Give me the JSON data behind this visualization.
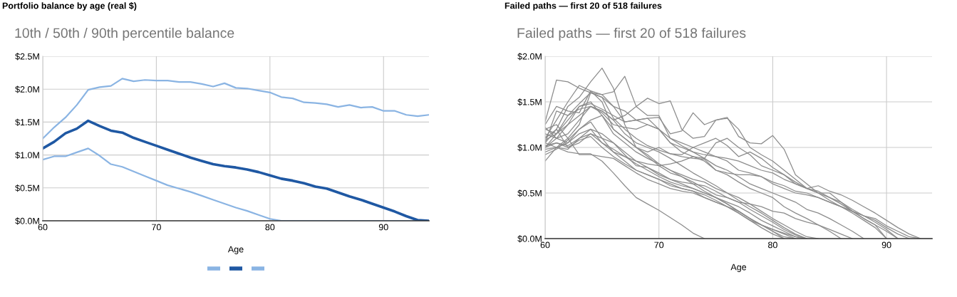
{
  "chart_data": [
    {
      "type": "line",
      "title": "10th / 50th / 90th percentile balance",
      "xlabel": "Age",
      "annotations": [
        "Portfolio balance by age (real $)"
      ],
      "x": [
        60,
        61,
        62,
        63,
        64,
        65,
        66,
        67,
        68,
        69,
        70,
        71,
        72,
        73,
        74,
        75,
        76,
        77,
        78,
        79,
        80,
        81,
        82,
        83,
        84,
        85,
        86,
        87,
        88,
        89,
        90,
        91,
        92,
        93,
        94
      ],
      "xlim": [
        60,
        94
      ],
      "xticks": [
        60,
        70,
        80,
        90
      ],
      "ylim": [
        0,
        2.5
      ],
      "yticks": [
        {
          "value": 0,
          "label": "$0.0M"
        },
        {
          "value": 0.5,
          "label": "$0.5M"
        },
        {
          "value": 1.0,
          "label": "$1.0M"
        },
        {
          "value": 1.5,
          "label": "$1.5M"
        },
        {
          "value": 2.0,
          "label": "$2.0M"
        },
        {
          "value": 2.5,
          "label": "$2.5M"
        }
      ],
      "grid": true,
      "marker": "none",
      "line_style": "solid",
      "series": [
        {
          "color": "#8ab4e3",
          "values": [
            0.93,
            0.98,
            0.98,
            1.04,
            1.1,
            0.99,
            0.86,
            0.82,
            0.75,
            0.68,
            0.61,
            0.54,
            0.49,
            0.44,
            0.38,
            0.32,
            0.26,
            0.2,
            0.15,
            0.09,
            0.03,
            0,
            0,
            0,
            0,
            0,
            0,
            0,
            0,
            0,
            0,
            0,
            0,
            0,
            0
          ]
        },
        {
          "color": "#1f58a3",
          "values": [
            1.1,
            1.2,
            1.33,
            1.4,
            1.52,
            1.44,
            1.37,
            1.34,
            1.26,
            1.2,
            1.14,
            1.08,
            1.02,
            0.96,
            0.91,
            0.86,
            0.83,
            0.81,
            0.78,
            0.74,
            0.69,
            0.64,
            0.61,
            0.57,
            0.52,
            0.49,
            0.43,
            0.37,
            0.32,
            0.26,
            0.2,
            0.14,
            0.07,
            0.01,
            0
          ]
        },
        {
          "color": "#8ab4e3",
          "values": [
            1.25,
            1.42,
            1.57,
            1.76,
            1.99,
            2.03,
            2.05,
            2.16,
            2.12,
            2.14,
            2.13,
            2.13,
            2.11,
            2.11,
            2.08,
            2.04,
            2.09,
            2.02,
            2.01,
            1.98,
            1.95,
            1.88,
            1.86,
            1.8,
            1.79,
            1.77,
            1.73,
            1.76,
            1.72,
            1.73,
            1.67,
            1.67,
            1.61,
            1.59,
            1.61
          ]
        }
      ]
    },
    {
      "type": "line",
      "title": "Failed paths — first 20 of 518 failures",
      "xlabel": "Age",
      "annotations": [
        "Failed paths — first 20 of 518 failures"
      ],
      "x": [
        60,
        61,
        62,
        63,
        64,
        65,
        66,
        67,
        68,
        69,
        70,
        71,
        72,
        73,
        74,
        75,
        76,
        77,
        78,
        79,
        80,
        81,
        82,
        83,
        84,
        85,
        86,
        87,
        88,
        89,
        90,
        91,
        92,
        93,
        94
      ],
      "xlim": [
        60,
        94
      ],
      "xticks": [
        60,
        70,
        80,
        90
      ],
      "ylim": [
        0,
        2.0
      ],
      "yticks": [
        {
          "value": 0,
          "label": "$0.0M"
        },
        {
          "value": 0.5,
          "label": "$0.5M"
        },
        {
          "value": 1.0,
          "label": "$1.0M"
        },
        {
          "value": 1.5,
          "label": "$1.5M"
        },
        {
          "value": 2.0,
          "label": "$2.0M"
        }
      ],
      "grid": true,
      "marker": "none",
      "line_style": "solid",
      "series": [
        {
          "color": "#8c8c8c",
          "values": [
            1.05,
            1.0,
            0.95,
            0.93,
            0.93,
            0.85,
            0.72,
            0.58,
            0.45,
            0.38,
            0.31,
            0.23,
            0.15,
            0.06,
            0.0,
            null,
            null,
            null,
            null,
            null,
            null,
            null,
            null,
            null,
            null,
            null,
            null,
            null,
            null,
            null,
            null,
            null,
            null,
            null,
            null
          ]
        },
        {
          "color": "#8c8c8c",
          "values": [
            1.05,
            1.2,
            1.45,
            1.55,
            1.72,
            1.87,
            1.65,
            1.25,
            1.0,
            0.92,
            0.82,
            0.75,
            0.68,
            0.6,
            0.52,
            0.45,
            0.38,
            0.3,
            0.22,
            0.15,
            0.1,
            0.06,
            0.02,
            0.0,
            null,
            null,
            null,
            null,
            null,
            null,
            null,
            null,
            null,
            null,
            null
          ]
        },
        {
          "color": "#8c8c8c",
          "values": [
            1.28,
            1.74,
            1.72,
            1.65,
            1.6,
            1.55,
            1.32,
            1.2,
            1.1,
            1.02,
            0.97,
            0.93,
            0.9,
            0.88,
            0.87,
            0.75,
            0.7,
            0.62,
            0.55,
            0.5,
            0.45,
            0.35,
            0.28,
            0.22,
            0.15,
            0.08,
            0.0,
            null,
            null,
            null,
            null,
            null,
            null,
            null,
            null
          ]
        },
        {
          "color": "#8c8c8c",
          "values": [
            1.1,
            1.3,
            1.5,
            1.68,
            1.62,
            1.58,
            1.61,
            1.78,
            1.45,
            1.35,
            1.35,
            1.1,
            1.05,
            1.0,
            0.95,
            0.9,
            0.85,
            0.75,
            0.72,
            0.68,
            0.62,
            0.58,
            0.52,
            0.5,
            0.45,
            0.4,
            0.35,
            0.3,
            0.25,
            0.2,
            0.12,
            0.05,
            0.0,
            null,
            null
          ]
        },
        {
          "color": "#8c8c8c",
          "values": [
            1.0,
            1.15,
            1.25,
            1.35,
            1.45,
            1.4,
            1.3,
            1.35,
            1.45,
            1.54,
            1.48,
            1.51,
            1.2,
            1.1,
            1.12,
            1.3,
            1.33,
            1.12,
            1.05,
            1.04,
            1.13,
            0.98,
            0.7,
            0.6,
            0.5,
            0.5,
            0.4,
            0.3,
            0.25,
            0.22,
            0.14,
            0.08,
            0.02,
            0.0,
            0.0
          ]
        },
        {
          "color": "#8c8c8c",
          "values": [
            1.2,
            1.15,
            1.3,
            1.45,
            1.48,
            1.42,
            1.35,
            1.28,
            1.3,
            1.32,
            1.33,
            1.15,
            1.18,
            1.38,
            1.25,
            1.3,
            1.32,
            1.2,
            1.0,
            0.92,
            0.85,
            0.75,
            0.65,
            0.55,
            0.58,
            0.52,
            0.48,
            0.42,
            0.35,
            0.28,
            0.2,
            0.12,
            0.05,
            0.0,
            null
          ]
        },
        {
          "color": "#8c8c8c",
          "values": [
            0.95,
            1.0,
            1.1,
            1.25,
            1.6,
            1.55,
            1.45,
            1.4,
            1.3,
            1.25,
            1.2,
            1.1,
            1.02,
            0.95,
            0.88,
            0.8,
            0.75,
            0.68,
            0.6,
            0.55,
            0.5,
            0.45,
            0.4,
            0.32,
            0.28,
            0.22,
            0.15,
            0.08,
            0.0,
            null,
            null,
            null,
            null,
            null,
            null
          ]
        },
        {
          "color": "#8c8c8c",
          "values": [
            1.25,
            1.45,
            1.4,
            1.38,
            1.62,
            1.5,
            1.2,
            1.1,
            1.0,
            0.95,
            1.0,
            0.93,
            0.92,
            1.0,
            1.05,
            1.1,
            1.02,
            0.9,
            0.95,
            0.88,
            0.78,
            0.7,
            0.62,
            0.55,
            0.5,
            0.45,
            0.4,
            0.32,
            0.25,
            0.18,
            0.1,
            0.0,
            null,
            null,
            null
          ]
        },
        {
          "color": "#8c8c8c",
          "values": [
            1.0,
            1.05,
            1.02,
            1.1,
            1.15,
            1.05,
            0.95,
            0.9,
            0.85,
            0.82,
            0.8,
            0.82,
            0.85,
            0.9,
            0.88,
            1.05,
            1.1,
            1.0,
            0.92,
            0.8,
            0.75,
            0.7,
            0.6,
            0.55,
            0.5,
            0.42,
            0.35,
            0.28,
            0.2,
            0.12,
            0.0,
            null,
            null,
            null,
            null
          ]
        },
        {
          "color": "#8c8c8c",
          "values": [
            1.1,
            1.2,
            1.0,
            1.05,
            1.15,
            1.1,
            0.95,
            0.85,
            0.75,
            0.7,
            0.65,
            0.6,
            0.55,
            0.52,
            0.48,
            0.42,
            0.35,
            0.28,
            0.2,
            0.12,
            0.05,
            0.0,
            null,
            null,
            null,
            null,
            null,
            null,
            null,
            null,
            null,
            null,
            null,
            null,
            null
          ]
        },
        {
          "color": "#8c8c8c",
          "values": [
            0.85,
            1.0,
            1.05,
            1.2,
            1.28,
            1.1,
            1.05,
            0.95,
            0.85,
            0.78,
            0.72,
            0.65,
            0.6,
            0.55,
            0.5,
            0.45,
            0.38,
            0.3,
            0.22,
            0.15,
            0.08,
            0.02,
            0.0,
            null,
            null,
            null,
            null,
            null,
            null,
            null,
            null,
            null,
            null,
            null,
            null
          ]
        },
        {
          "color": "#8c8c8c",
          "values": [
            1.2,
            1.25,
            1.1,
            0.92,
            0.92,
            0.9,
            0.88,
            0.8,
            0.72,
            0.65,
            0.6,
            0.55,
            0.52,
            0.5,
            0.45,
            0.4,
            0.35,
            0.3,
            0.22,
            0.15,
            0.1,
            0.05,
            0.0,
            null,
            null,
            null,
            null,
            null,
            null,
            null,
            null,
            null,
            null,
            null,
            null
          ]
        },
        {
          "color": "#8c8c8c",
          "values": [
            1.0,
            1.1,
            1.15,
            1.3,
            1.45,
            1.4,
            1.3,
            1.15,
            1.05,
            1.0,
            0.95,
            0.88,
            0.8,
            0.72,
            0.65,
            0.58,
            0.5,
            0.45,
            0.38,
            0.3,
            0.22,
            0.15,
            0.08,
            0.02,
            0.0,
            null,
            null,
            null,
            null,
            null,
            null,
            null,
            null,
            null,
            null
          ]
        },
        {
          "color": "#8c8c8c",
          "values": [
            1.05,
            1.4,
            1.35,
            1.42,
            1.45,
            1.38,
            1.25,
            1.22,
            1.2,
            1.25,
            1.2,
            1.05,
            0.95,
            0.9,
            0.85,
            0.75,
            0.72,
            0.7,
            0.7,
            0.68,
            0.6,
            0.55,
            0.5,
            0.48,
            0.45,
            0.4,
            0.35,
            0.3,
            0.22,
            0.15,
            0.08,
            0.0,
            null,
            null,
            null
          ]
        },
        {
          "color": "#8c8c8c",
          "values": [
            0.98,
            1.0,
            0.98,
            1.1,
            1.2,
            1.15,
            1.05,
            0.92,
            0.8,
            0.78,
            0.7,
            0.65,
            0.62,
            0.6,
            0.58,
            0.52,
            0.45,
            0.4,
            0.32,
            0.25,
            0.18,
            0.1,
            0.04,
            0.0,
            null,
            null,
            null,
            null,
            null,
            null,
            null,
            null,
            null,
            null,
            null
          ]
        },
        {
          "color": "#8c8c8c",
          "values": [
            1.02,
            1.05,
            1.0,
            1.08,
            1.12,
            1.0,
            0.9,
            0.82,
            0.75,
            0.7,
            0.65,
            0.58,
            0.55,
            0.52,
            0.45,
            0.4,
            0.35,
            0.28,
            0.2,
            0.15,
            0.08,
            0.0,
            null,
            null,
            null,
            null,
            null,
            null,
            null,
            null,
            null,
            null,
            null,
            null,
            null
          ]
        },
        {
          "color": "#8c8c8c",
          "values": [
            1.15,
            1.1,
            1.25,
            1.45,
            1.5,
            1.35,
            1.15,
            1.05,
            0.95,
            0.88,
            0.82,
            0.75,
            0.7,
            0.65,
            0.62,
            0.55,
            0.5,
            0.42,
            0.35,
            0.28,
            0.2,
            0.12,
            0.05,
            0.0,
            null,
            null,
            null,
            null,
            null,
            null,
            null,
            null,
            null,
            null,
            null
          ]
        },
        {
          "color": "#8c8c8c",
          "values": [
            0.92,
            0.98,
            1.08,
            1.2,
            1.3,
            1.35,
            1.2,
            1.1,
            1.0,
            0.9,
            0.8,
            0.72,
            0.68,
            0.62,
            0.55,
            0.48,
            0.45,
            0.4,
            0.38,
            0.35,
            0.3,
            0.28,
            0.22,
            0.18,
            0.15,
            0.1,
            0.05,
            0.0,
            null,
            null,
            null,
            null,
            null,
            null,
            null
          ]
        },
        {
          "color": "#8c8c8c",
          "values": [
            1.08,
            1.15,
            1.35,
            1.48,
            1.6,
            1.58,
            1.45,
            1.28,
            1.3,
            1.32,
            1.2,
            1.05,
            1.0,
            0.95,
            0.92,
            0.9,
            0.88,
            0.85,
            0.8,
            0.75,
            0.72,
            0.65,
            0.6,
            0.55,
            0.52,
            0.45,
            0.38,
            0.3,
            0.22,
            0.15,
            0.0,
            null,
            null,
            null,
            null
          ]
        },
        {
          "color": "#8c8c8c",
          "values": [
            1.22,
            1.1,
            1.05,
            1.15,
            1.2,
            1.05,
            0.98,
            0.9,
            0.82,
            0.75,
            0.68,
            0.62,
            0.58,
            0.55,
            0.5,
            0.45,
            0.4,
            0.35,
            0.28,
            0.2,
            0.14,
            0.08,
            0.02,
            0.0,
            null,
            null,
            null,
            null,
            null,
            null,
            null,
            null,
            null,
            null,
            null
          ]
        }
      ]
    }
  ]
}
